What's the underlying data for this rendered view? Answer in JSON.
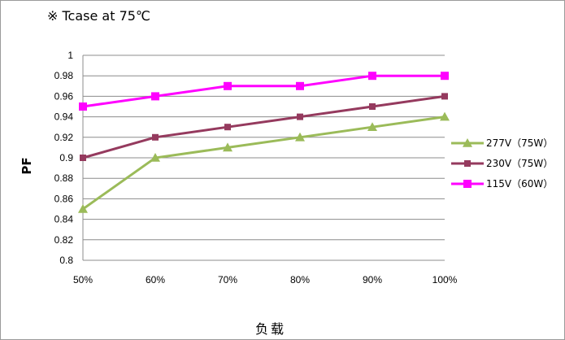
{
  "chart_data": {
    "type": "line",
    "title": "※ Tcase at 75℃",
    "xlabel": "负载",
    "ylabel": "PF",
    "categories": [
      "50%",
      "60%",
      "70%",
      "80%",
      "90%",
      "100%"
    ],
    "ylim": [
      0.8,
      1.0
    ],
    "yticks": [
      "1",
      "0.98",
      "0.96",
      "0.94",
      "0.92",
      "0.9",
      "0.88",
      "0.86",
      "0.84",
      "0.82",
      "0.8"
    ],
    "grid": true,
    "legend": "right",
    "series": [
      {
        "name": "277V（75W）",
        "color": "#9bbb59",
        "marker": "triangle",
        "values": [
          0.85,
          0.9,
          0.91,
          0.92,
          0.93,
          0.94
        ]
      },
      {
        "name": "230V（75W）",
        "color": "#953a5e",
        "marker": "square",
        "values": [
          0.9,
          0.92,
          0.93,
          0.94,
          0.95,
          0.96
        ]
      },
      {
        "name": "115V（60W）",
        "color": "#ff00ff",
        "marker": "square",
        "values": [
          0.95,
          0.96,
          0.97,
          0.97,
          0.98,
          0.98
        ]
      }
    ]
  }
}
